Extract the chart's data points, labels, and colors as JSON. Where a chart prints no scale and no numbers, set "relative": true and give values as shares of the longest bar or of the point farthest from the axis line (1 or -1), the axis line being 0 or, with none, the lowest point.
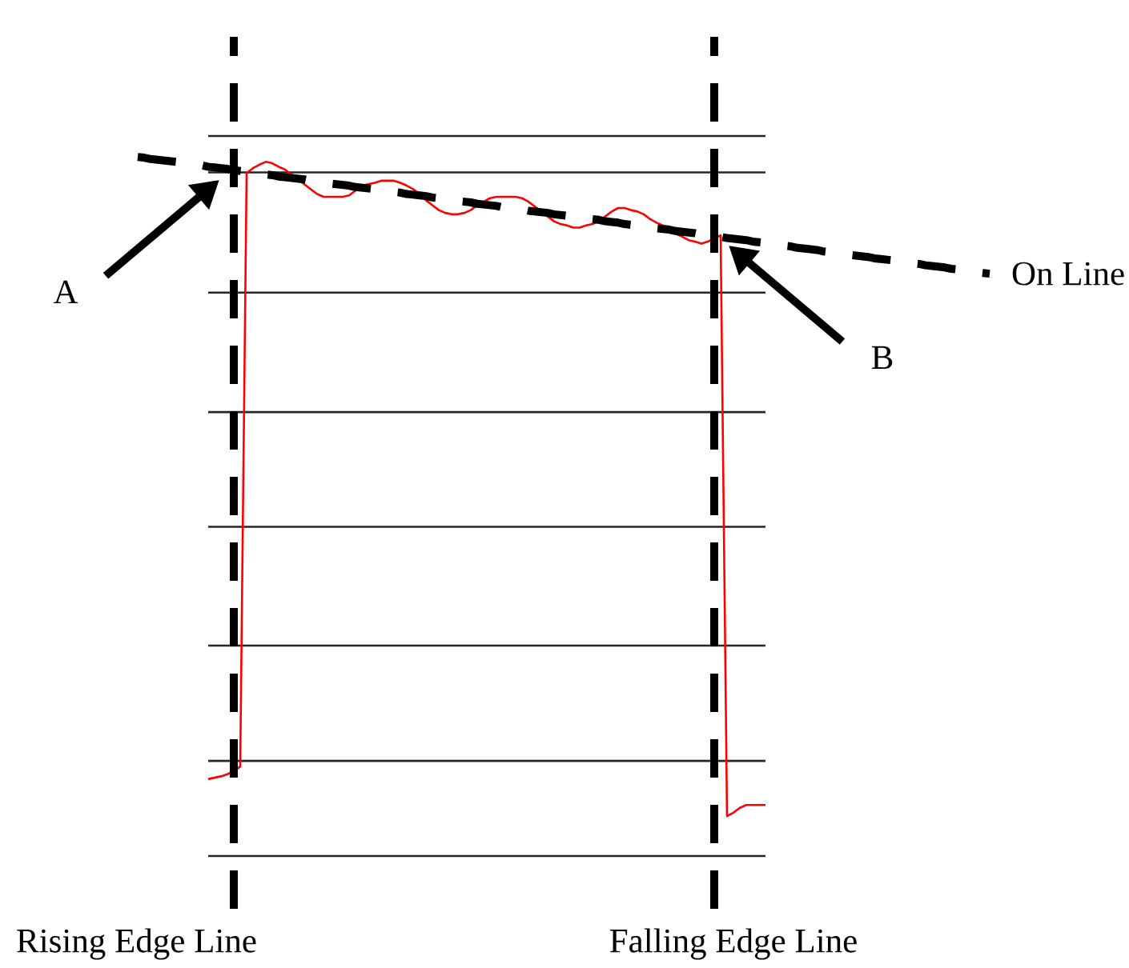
{
  "chart_data": {
    "type": "line",
    "relative": true,
    "categories": [
      null,
      null,
      null,
      null,
      null,
      null,
      null,
      null,
      null,
      null,
      null,
      null,
      null,
      null,
      null,
      null,
      null,
      null,
      null,
      null,
      null,
      null,
      null,
      null,
      null,
      null,
      null,
      null,
      null,
      null,
      null,
      null,
      null,
      null,
      null,
      null,
      null,
      null,
      null,
      null,
      null,
      null,
      null,
      null,
      null,
      null,
      null,
      null,
      null,
      null,
      null,
      null,
      null,
      null,
      null,
      null,
      null,
      null,
      null,
      null,
      null,
      null,
      null,
      null,
      null,
      null,
      null,
      null,
      null,
      null,
      null,
      null,
      null,
      null,
      null,
      null,
      null,
      null,
      null,
      null,
      null,
      null,
      null,
      null,
      null,
      null,
      null,
      null,
      null,
      null,
      null,
      null,
      null,
      null,
      null,
      null,
      null,
      null,
      null,
      null,
      null,
      null,
      null,
      null,
      null,
      null,
      null,
      null,
      null,
      null,
      null,
      null,
      null,
      null,
      null,
      null,
      null,
      null,
      null,
      null,
      null,
      null,
      null,
      null,
      null,
      null,
      null,
      null,
      null,
      null,
      null,
      null,
      null,
      null
    ],
    "series": [
      {
        "color": "#ff0000",
        "values": [
          null,
          null,
          null,
          null,
          null,
          null,
          null,
          null,
          null,
          null,
          null,
          0.11,
          0.112,
          0.114,
          0.117,
          0.121,
          0.128,
          0.977,
          0.984,
          0.989,
          0.993,
          0.991,
          0.986,
          0.982,
          0.975,
          0.968,
          0.961,
          0.954,
          0.947,
          0.943,
          0.943,
          0.943,
          0.943,
          0.945,
          0.952,
          0.959,
          0.961,
          0.963,
          0.966,
          0.966,
          0.966,
          0.963,
          0.959,
          0.954,
          0.947,
          0.938,
          0.931,
          0.924,
          0.92,
          0.918,
          0.918,
          0.92,
          0.924,
          0.931,
          0.936,
          0.941,
          0.943,
          0.943,
          0.943,
          0.943,
          0.941,
          0.936,
          0.929,
          0.922,
          0.915,
          0.908,
          0.904,
          0.902,
          0.899,
          0.899,
          0.902,
          0.904,
          0.908,
          0.915,
          0.922,
          0.927,
          0.927,
          0.924,
          0.922,
          0.918,
          0.911,
          0.906,
          0.902,
          0.897,
          0.89,
          0.886,
          0.881,
          0.879,
          0.876,
          0.879,
          0.883,
          0.888,
          0.057,
          0.062,
          0.069,
          0.073,
          0.073,
          0.073,
          0.073,
          null,
          null,
          null,
          null,
          null,
          null,
          null,
          null,
          null,
          null,
          null,
          null,
          null,
          null,
          null,
          null,
          null,
          null,
          null,
          null,
          null,
          null,
          null,
          null,
          null,
          null,
          null,
          null,
          null,
          null,
          null,
          null,
          null,
          null,
          null
        ]
      },
      {
        "name": "On Line",
        "type": "line",
        "color": "#000000",
        "line_style": "dashed",
        "values": [
          1.0,
          0.999,
          0.997,
          0.996,
          0.995,
          0.994,
          0.993,
          0.991,
          0.99,
          0.989,
          0.988,
          0.986,
          0.985,
          0.984,
          0.983,
          0.981,
          0.98,
          0.979,
          0.978,
          0.976,
          0.975,
          0.974,
          0.972,
          0.971,
          0.97,
          0.969,
          0.968,
          0.966,
          0.965,
          0.964,
          0.962,
          0.961,
          0.96,
          0.959,
          0.957,
          0.956,
          0.955,
          0.954,
          0.952,
          0.951,
          0.95,
          0.949,
          0.947,
          0.946,
          0.945,
          0.944,
          0.942,
          0.941,
          0.94,
          0.938,
          0.937,
          0.936,
          0.935,
          0.933,
          0.932,
          0.931,
          0.93,
          0.928,
          0.927,
          0.926,
          0.925,
          0.923,
          0.922,
          0.921,
          0.92,
          0.918,
          0.917,
          0.916,
          0.915,
          0.913,
          0.912,
          0.911,
          0.91,
          0.908,
          0.907,
          0.906,
          0.904,
          0.903,
          0.902,
          0.901,
          0.899,
          0.898,
          0.897,
          0.896,
          0.894,
          0.893,
          0.892,
          0.891,
          0.889,
          0.888,
          0.887,
          0.886,
          0.884,
          0.883,
          0.882,
          0.881,
          0.879,
          0.878,
          0.877,
          0.876,
          0.874,
          0.873,
          0.872,
          0.87,
          0.869,
          0.868,
          0.867,
          0.865,
          0.864,
          0.863,
          0.862,
          0.86,
          0.859,
          0.858,
          0.857,
          0.855,
          0.854,
          0.853,
          0.852,
          0.85,
          0.849,
          0.848,
          0.847,
          0.845,
          0.844,
          0.843,
          0.842,
          0.84,
          0.839,
          0.838,
          0.836,
          0.835,
          0.834,
          0.833
        ]
      }
    ],
    "ref_lines": [
      {
        "axis": "y",
        "value": 0.978,
        "color": "#262626",
        "line_style": "solid"
      },
      {
        "axis": "y",
        "value": 0.806,
        "color": "#262626",
        "line_style": "solid"
      },
      {
        "axis": "y",
        "value": 0.635,
        "color": "#262626",
        "line_style": "solid"
      },
      {
        "axis": "y",
        "value": 0.471,
        "color": "#262626",
        "line_style": "solid"
      },
      {
        "axis": "y",
        "value": 0.301,
        "color": "#262626",
        "line_style": "solid"
      },
      {
        "axis": "y",
        "value": 0.136,
        "color": "#262626",
        "line_style": "solid"
      }
    ],
    "annotations": [
      "A",
      "B",
      "Rising Edge Line",
      "Falling Edge Line"
    ]
  }
}
